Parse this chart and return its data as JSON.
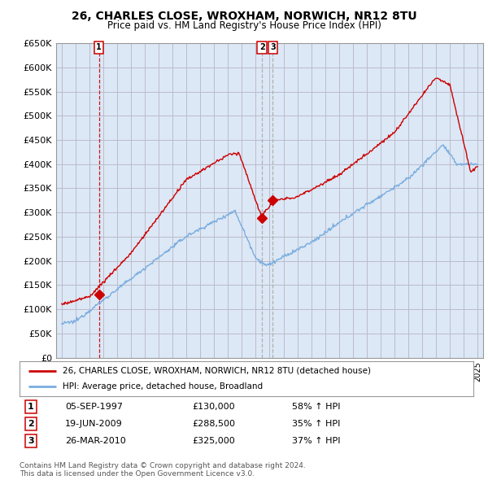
{
  "title": "26, CHARLES CLOSE, WROXHAM, NORWICH, NR12 8TU",
  "subtitle": "Price paid vs. HM Land Registry's House Price Index (HPI)",
  "legend_line1": "26, CHARLES CLOSE, WROXHAM, NORWICH, NR12 8TU (detached house)",
  "legend_line2": "HPI: Average price, detached house, Broadland",
  "copyright": "Contains HM Land Registry data © Crown copyright and database right 2024.\nThis data is licensed under the Open Government Licence v3.0.",
  "sale_color": "#cc0000",
  "hpi_color": "#7aade0",
  "grid_color": "#bbbbcc",
  "bg_chart": "#dce8f5",
  "background_color": "#ffffff",
  "sales": [
    {
      "label": "1",
      "date_str": "05-SEP-1997",
      "date_x": 1997.68,
      "price": 130000,
      "pct": "58% ↑ HPI"
    },
    {
      "label": "2",
      "date_str": "19-JUN-2009",
      "date_x": 2009.46,
      "price": 288500,
      "pct": "35% ↑ HPI"
    },
    {
      "label": "3",
      "date_str": "26-MAR-2010",
      "date_x": 2010.23,
      "price": 325000,
      "pct": "37% ↑ HPI"
    }
  ],
  "ylim": [
    0,
    650000
  ],
  "yticks": [
    0,
    50000,
    100000,
    150000,
    200000,
    250000,
    300000,
    350000,
    400000,
    450000,
    500000,
    550000,
    600000,
    650000
  ],
  "xlim_start": 1994.6,
  "xlim_end": 2025.4
}
